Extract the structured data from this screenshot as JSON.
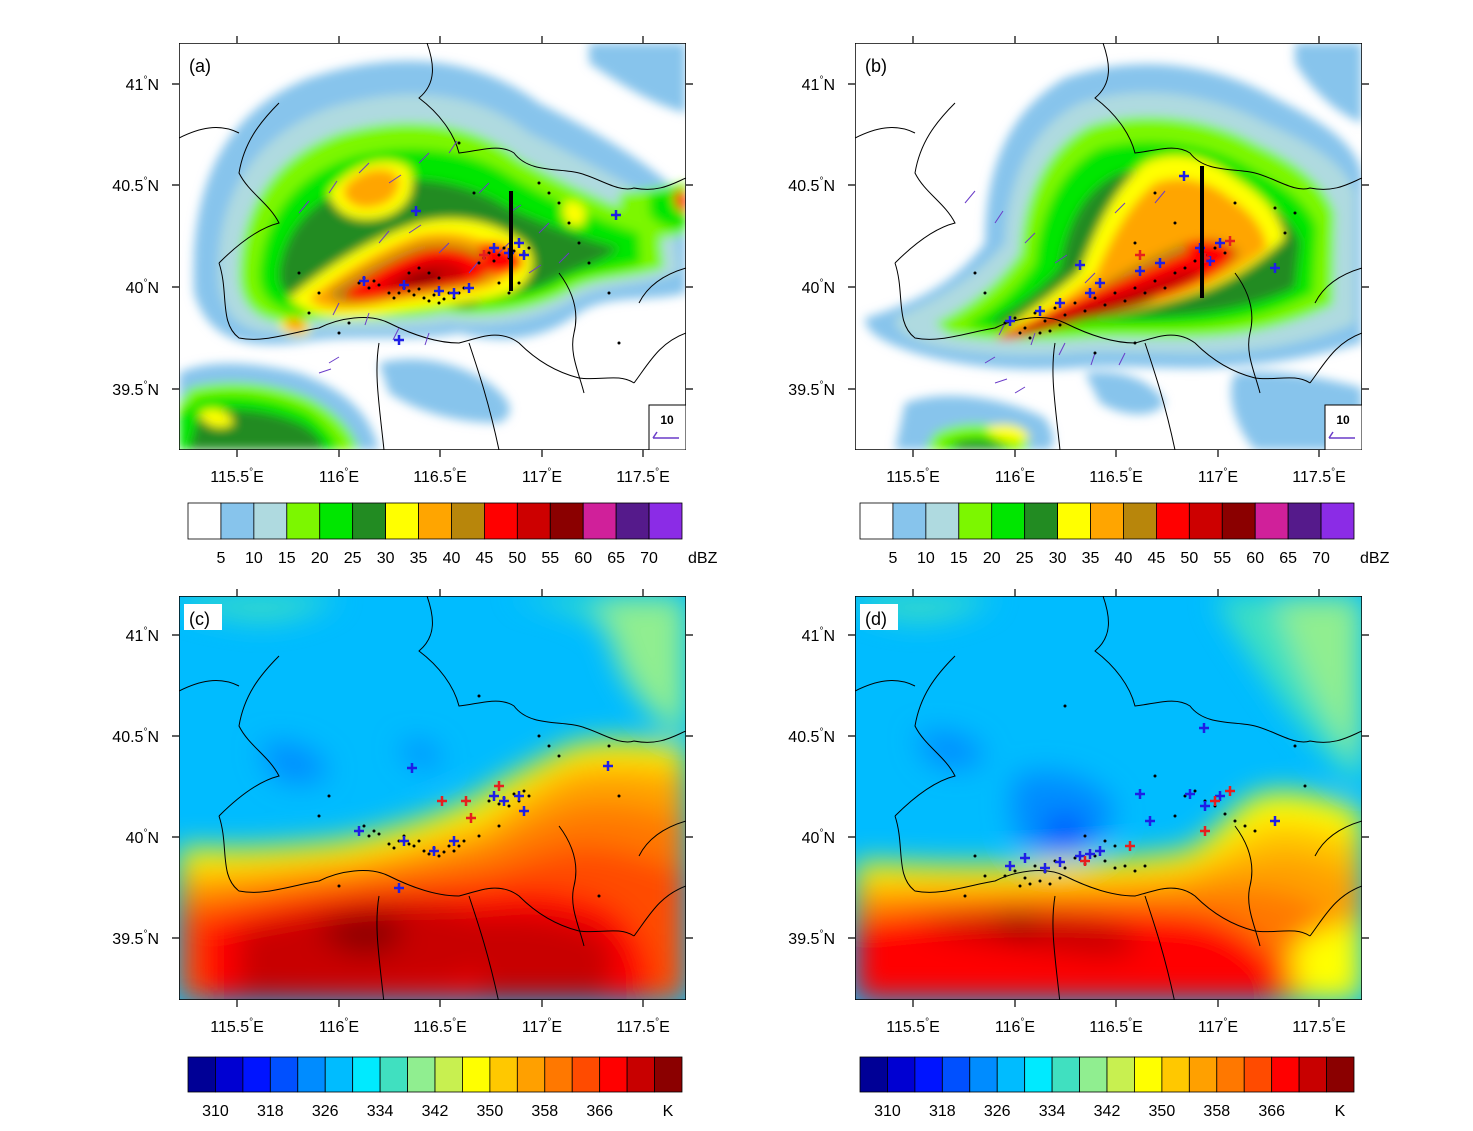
{
  "lat_labels": [
    "41°N",
    "40.5°N",
    "40°N",
    "39.5°N"
  ],
  "lon_labels": [
    "115.5°E",
    "116°E",
    "116.5°E",
    "117°E",
    "117.5°E"
  ],
  "panels": [
    {
      "label": "(a)",
      "field": "reflectivity",
      "scale_box": "10"
    },
    {
      "label": "(b)",
      "field": "reflectivity",
      "scale_box": "10"
    },
    {
      "label": "(c)",
      "field": "theta_e"
    },
    {
      "label": "(d)",
      "field": "theta_e"
    }
  ],
  "colorbars": {
    "reflectivity": {
      "colors": [
        "#ffffff",
        "#87c4ec",
        "#afdae0",
        "#7cf700",
        "#00e600",
        "#228b22",
        "#ffff00",
        "#ffa500",
        "#b8860b",
        "#ff0000",
        "#cd0000",
        "#8b0000",
        "#d0209a",
        "#551a8b",
        "#8b2ce6"
      ],
      "labels": [
        "5",
        "10",
        "15",
        "20",
        "25",
        "30",
        "35",
        "40",
        "45",
        "50",
        "55",
        "60",
        "65",
        "70"
      ],
      "unit": "dBZ"
    },
    "theta_e": {
      "colors": [
        "#000096",
        "#0000d2",
        "#0014ff",
        "#0050ff",
        "#008cff",
        "#00bcff",
        "#00eaff",
        "#40e0c0",
        "#90ee90",
        "#c8f050",
        "#ffff00",
        "#ffc800",
        "#ffa000",
        "#ff7800",
        "#ff4b00",
        "#ff0000",
        "#c80000",
        "#8b0000"
      ],
      "labels": [
        "310",
        "318",
        "326",
        "334",
        "342",
        "350",
        "358",
        "366"
      ],
      "unit": "K"
    }
  }
}
